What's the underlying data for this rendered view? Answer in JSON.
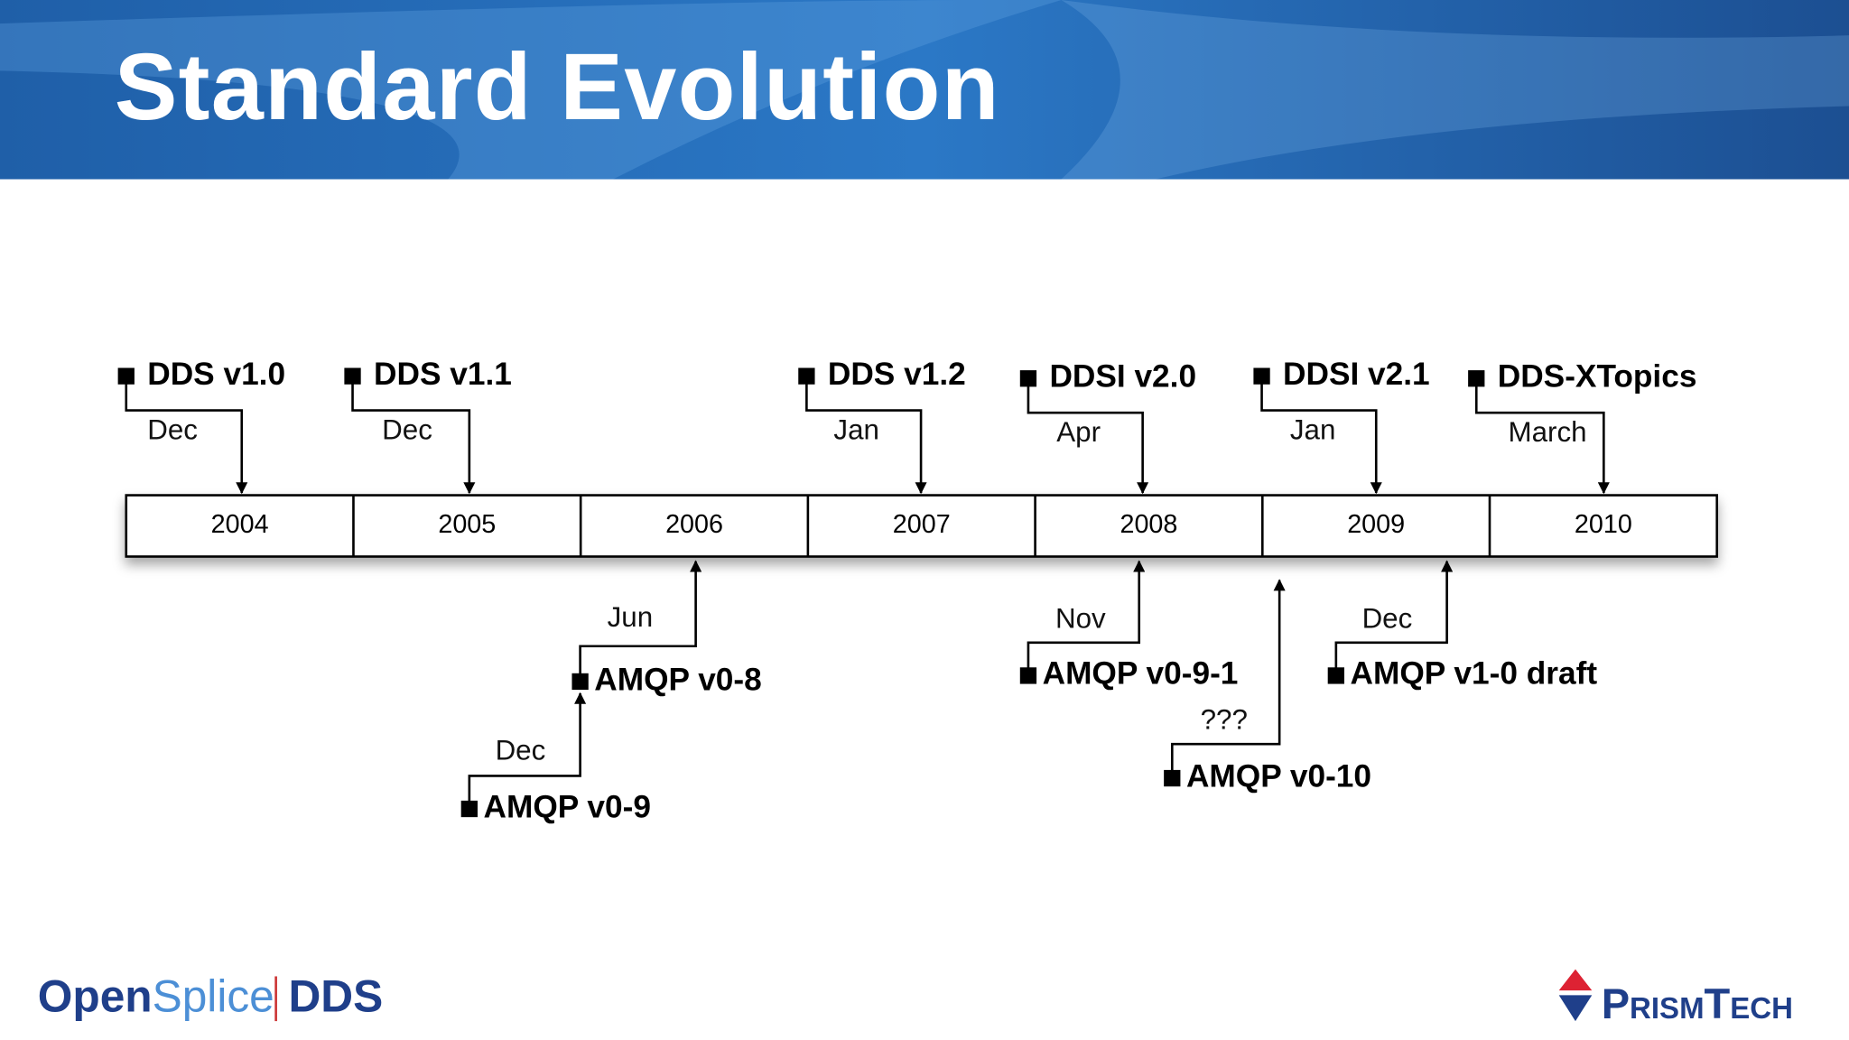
{
  "header": {
    "title": "Standard Evolution"
  },
  "timeline": {
    "years": [
      "2004",
      "2005",
      "2006",
      "2007",
      "2008",
      "2009",
      "2010"
    ]
  },
  "events_above": [
    {
      "label": "DDS v1.0",
      "month": "Dec"
    },
    {
      "label": "DDS v1.1",
      "month": "Dec"
    },
    {
      "label": "DDS v1.2",
      "month": "Jan"
    },
    {
      "label": "DDSI v2.0",
      "month": "Apr"
    },
    {
      "label": "DDSI v2.1",
      "month": "Jan"
    },
    {
      "label": "DDS-XTopics",
      "month": "March"
    }
  ],
  "events_below": [
    {
      "label": "AMQP v0-8",
      "month": "Jun"
    },
    {
      "label": "AMQP v0-9",
      "month": "Dec"
    },
    {
      "label": "AMQP v0-9-1",
      "month": "Nov"
    },
    {
      "label": "AMQP v0-10",
      "month": "???"
    },
    {
      "label": "AMQP v1-0 draft",
      "month": "Dec"
    }
  ],
  "footer": {
    "left_logo": {
      "open": "Open",
      "splice": "Splice",
      "dds": "DDS"
    },
    "right_logo": "PrismTech"
  }
}
